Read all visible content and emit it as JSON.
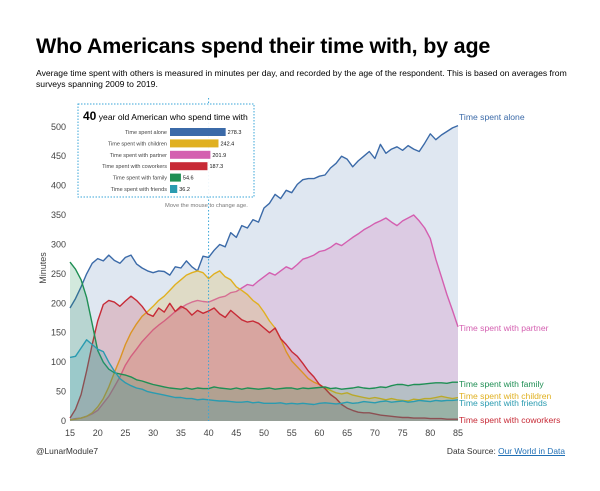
{
  "title": "Who Americans spend their time with, by age",
  "subtitle": "Average time spent with others is measured in minutes per day, and recorded by the age of the respondent. This is based on averages from surveys spanning 2009 to 2019.",
  "footer": {
    "credit": "@LunarModule7",
    "source_prefix": "Data Source: ",
    "source_link": "Our World in Data"
  },
  "tooltip": {
    "age": "40",
    "text": "year old American who spend time with",
    "hint": "Move the mouse to change age."
  },
  "colors": {
    "alone": "#3b6aa8",
    "children": "#e0b020",
    "partner": "#d45fb0",
    "coworkers": "#c72a36",
    "family": "#1f8f54",
    "friends": "#2a9bb0"
  },
  "chart_data": {
    "type": "area",
    "xlabel": "",
    "ylabel": "Minutes",
    "xlim": [
      15,
      85
    ],
    "ylim": [
      0,
      520
    ],
    "x_ticks": [
      15,
      20,
      25,
      30,
      35,
      40,
      45,
      50,
      55,
      60,
      65,
      70,
      75,
      80,
      85
    ],
    "y_ticks": [
      0,
      50,
      100,
      150,
      200,
      250,
      300,
      350,
      400,
      450,
      500
    ],
    "selected_age": 40,
    "x": [
      15,
      16,
      17,
      18,
      19,
      20,
      21,
      22,
      23,
      24,
      25,
      26,
      27,
      28,
      29,
      30,
      31,
      32,
      33,
      34,
      35,
      36,
      37,
      38,
      39,
      40,
      41,
      42,
      43,
      44,
      45,
      46,
      47,
      48,
      49,
      50,
      51,
      52,
      53,
      54,
      55,
      56,
      57,
      58,
      59,
      60,
      61,
      62,
      63,
      64,
      65,
      66,
      67,
      68,
      69,
      70,
      71,
      72,
      73,
      74,
      75,
      76,
      77,
      78,
      79,
      80,
      81,
      82,
      83,
      84,
      85
    ],
    "series": [
      {
        "key": "alone",
        "name": "Time spent alone",
        "values": [
          192,
          208,
          228,
          250,
          268,
          276,
          272,
          282,
          273,
          268,
          278,
          282,
          267,
          260,
          255,
          252,
          255,
          254,
          248,
          262,
          260,
          272,
          262,
          255,
          280,
          278,
          290,
          300,
          296,
          320,
          312,
          332,
          328,
          342,
          338,
          362,
          370,
          385,
          378,
          392,
          388,
          402,
          410,
          412,
          412,
          416,
          418,
          430,
          438,
          450,
          445,
          432,
          442,
          450,
          458,
          446,
          470,
          455,
          462,
          466,
          460,
          468,
          462,
          458,
          472,
          488,
          478,
          486,
          492,
          498,
          502
        ]
      },
      {
        "key": "partner",
        "name": "Time spent with partner",
        "values": [
          2,
          4,
          5,
          8,
          12,
          18,
          30,
          42,
          58,
          75,
          95,
          110,
          122,
          135,
          145,
          155,
          163,
          170,
          178,
          186,
          192,
          198,
          202,
          205,
          203,
          202,
          206,
          210,
          212,
          218,
          220,
          226,
          232,
          230,
          238,
          245,
          252,
          248,
          255,
          262,
          258,
          266,
          275,
          278,
          282,
          288,
          290,
          295,
          302,
          298,
          305,
          312,
          318,
          325,
          330,
          336,
          340,
          345,
          338,
          332,
          340,
          345,
          350,
          340,
          328,
          310,
          275,
          245,
          215,
          188,
          160
        ]
      },
      {
        "key": "children",
        "name": "Time spent with children",
        "values": [
          2,
          3,
          5,
          8,
          14,
          24,
          38,
          58,
          82,
          105,
          130,
          150,
          165,
          178,
          186,
          195,
          205,
          212,
          222,
          232,
          240,
          248,
          252,
          255,
          252,
          242,
          250,
          255,
          245,
          240,
          228,
          222,
          215,
          205,
          198,
          185,
          170,
          158,
          140,
          118,
          102,
          92,
          82,
          72,
          66,
          62,
          56,
          52,
          48,
          46,
          48,
          44,
          42,
          40,
          38,
          40,
          38,
          36,
          38,
          36,
          35,
          34,
          37,
          36,
          38,
          38,
          40,
          42,
          40,
          38,
          40
        ]
      },
      {
        "key": "coworkers",
        "name": "Time spent with coworkers",
        "values": [
          5,
          20,
          45,
          85,
          130,
          170,
          198,
          205,
          202,
          195,
          204,
          212,
          205,
          195,
          182,
          178,
          192,
          185,
          200,
          186,
          195,
          190,
          180,
          188,
          183,
          187,
          192,
          182,
          176,
          188,
          180,
          172,
          168,
          170,
          166,
          158,
          150,
          158,
          140,
          130,
          118,
          110,
          98,
          85,
          75,
          62,
          55,
          45,
          38,
          28,
          22,
          18,
          15,
          14,
          14,
          12,
          10,
          9,
          8,
          7,
          6,
          6,
          5,
          5,
          5,
          4,
          4,
          4,
          3,
          3,
          3
        ]
      },
      {
        "key": "family",
        "name": "Time spent with family",
        "values": [
          270,
          258,
          240,
          210,
          165,
          120,
          100,
          88,
          82,
          80,
          78,
          75,
          70,
          68,
          65,
          62,
          60,
          58,
          56,
          55,
          54,
          56,
          54,
          56,
          55,
          55,
          58,
          56,
          55,
          54,
          56,
          54,
          56,
          55,
          54,
          55,
          56,
          54,
          55,
          56,
          56,
          54,
          56,
          55,
          56,
          57,
          58,
          55,
          56,
          54,
          55,
          56,
          58,
          56,
          55,
          56,
          58,
          57,
          60,
          62,
          62,
          60,
          62,
          62,
          63,
          64,
          65,
          65,
          64,
          66,
          66
        ]
      },
      {
        "key": "friends",
        "name": "Time spent with friends",
        "values": [
          108,
          110,
          124,
          138,
          130,
          122,
          118,
          100,
          85,
          72,
          65,
          60,
          56,
          54,
          50,
          48,
          46,
          44,
          42,
          40,
          40,
          38,
          38,
          36,
          37,
          36,
          35,
          34,
          34,
          33,
          32,
          32,
          33,
          31,
          32,
          30,
          30,
          30,
          31,
          29,
          30,
          29,
          30,
          29,
          28,
          30,
          31,
          30,
          29,
          30,
          32,
          30,
          31,
          33,
          32,
          31,
          33,
          34,
          32,
          33,
          34,
          32,
          33,
          35,
          34,
          33,
          35,
          34,
          35,
          35,
          36
        ]
      }
    ],
    "tooltip_values": [
      {
        "label": "Time spent alone",
        "value": "278.3",
        "num": 278.3,
        "key": "alone"
      },
      {
        "label": "Time spent with children",
        "value": "242.4",
        "num": 242.4,
        "key": "children"
      },
      {
        "label": "Time spent with partner",
        "value": "201.9",
        "num": 201.9,
        "key": "partner"
      },
      {
        "label": "Time spent with coworkers",
        "value": "187.3",
        "num": 187.3,
        "key": "coworkers"
      },
      {
        "label": "Time spent with family",
        "value": "54.6",
        "num": 54.6,
        "key": "family"
      },
      {
        "label": "Time spent with friends",
        "value": "36.2",
        "num": 36.2,
        "key": "friends"
      }
    ]
  }
}
